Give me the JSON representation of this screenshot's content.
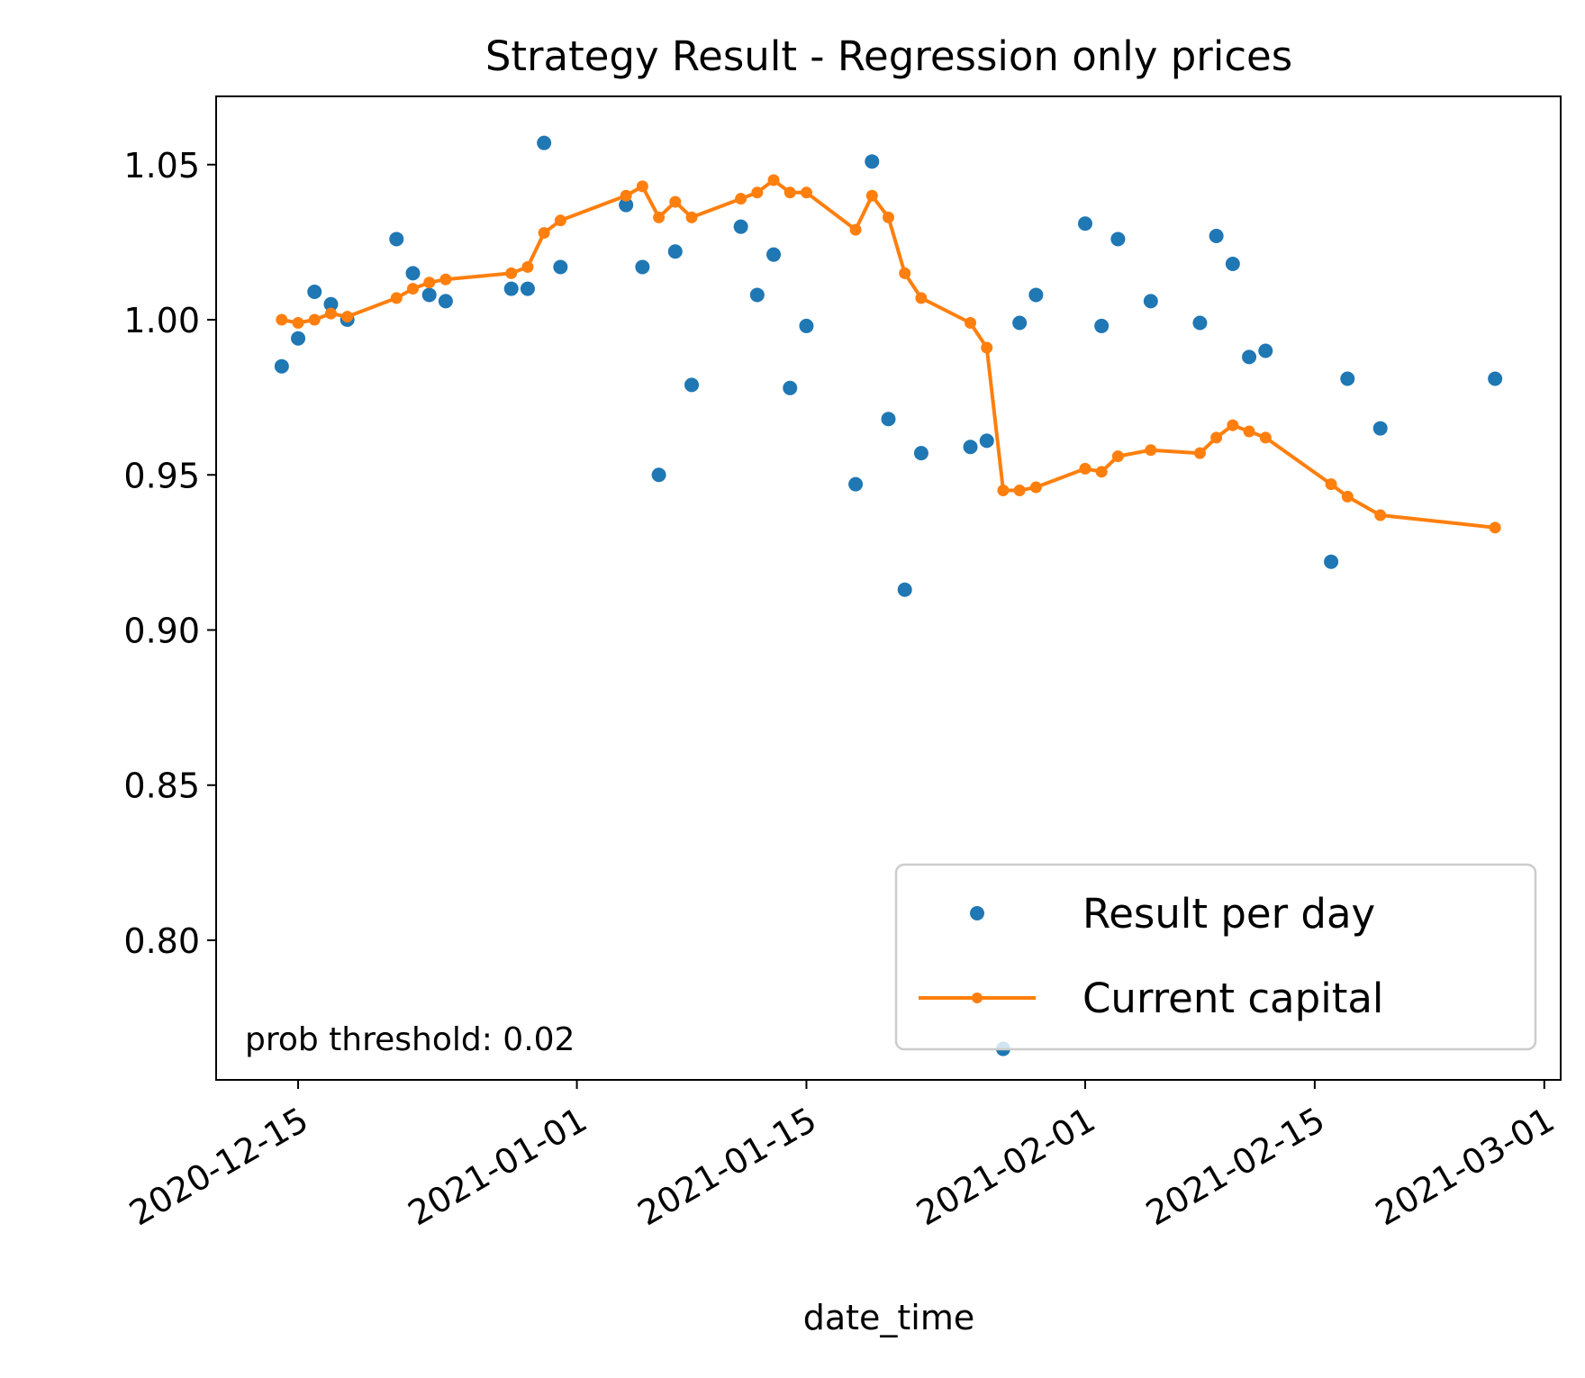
{
  "chart_data": {
    "type": "scatter",
    "title": "Strategy Result - Regression only prices",
    "xlabel": "date_time",
    "ylabel": "",
    "x_ticks": [
      "2020-12-15",
      "2021-01-01",
      "2021-01-15",
      "2021-02-01",
      "2021-02-15",
      "2021-03-01"
    ],
    "y_ticks": [
      "0.80",
      "0.85",
      "0.90",
      "0.95",
      "1.00",
      "1.05"
    ],
    "xlim": [
      "2020-12-10",
      "2021-03-02"
    ],
    "ylim": [
      0.755,
      1.072
    ],
    "legend_position": "lower-right",
    "annotation": "prob threshold: 0.02",
    "series": [
      {
        "name": "Result per day",
        "style": "points",
        "color": "#1f77b4",
        "x": [
          "2020-12-14",
          "2020-12-15",
          "2020-12-16",
          "2020-12-17",
          "2020-12-18",
          "2020-12-21",
          "2020-12-22",
          "2020-12-23",
          "2020-12-24",
          "2020-12-28",
          "2020-12-29",
          "2020-12-30",
          "2020-12-31",
          "2021-01-04",
          "2021-01-05",
          "2021-01-06",
          "2021-01-07",
          "2021-01-08",
          "2021-01-11",
          "2021-01-12",
          "2021-01-13",
          "2021-01-14",
          "2021-01-15",
          "2021-01-18",
          "2021-01-19",
          "2021-01-20",
          "2021-01-21",
          "2021-01-22",
          "2021-01-25",
          "2021-01-26",
          "2021-01-27",
          "2021-01-28",
          "2021-01-29",
          "2021-02-01",
          "2021-02-02",
          "2021-02-03",
          "2021-02-05",
          "2021-02-08",
          "2021-02-09",
          "2021-02-10",
          "2021-02-11",
          "2021-02-12",
          "2021-02-16",
          "2021-02-17",
          "2021-02-19",
          "2021-02-26"
        ],
        "y": [
          0.985,
          0.994,
          1.009,
          1.005,
          1.0,
          1.026,
          1.015,
          1.008,
          1.006,
          1.01,
          1.01,
          1.057,
          1.017,
          1.037,
          1.017,
          0.95,
          1.022,
          0.979,
          1.03,
          1.008,
          1.021,
          0.978,
          0.998,
          0.947,
          1.051,
          0.968,
          0.913,
          0.957,
          0.959,
          0.961,
          0.765,
          0.999,
          1.008,
          1.031,
          0.998,
          1.026,
          1.006,
          0.999,
          1.027,
          1.018,
          0.988,
          0.99,
          0.922,
          0.981,
          0.965,
          0.981
        ]
      },
      {
        "name": "Current capital",
        "style": "line-markers",
        "color": "#ff7f0e",
        "x": [
          "2020-12-14",
          "2020-12-15",
          "2020-12-16",
          "2020-12-17",
          "2020-12-18",
          "2020-12-21",
          "2020-12-22",
          "2020-12-23",
          "2020-12-24",
          "2020-12-28",
          "2020-12-29",
          "2020-12-30",
          "2020-12-31",
          "2021-01-04",
          "2021-01-05",
          "2021-01-06",
          "2021-01-07",
          "2021-01-08",
          "2021-01-11",
          "2021-01-12",
          "2021-01-13",
          "2021-01-14",
          "2021-01-15",
          "2021-01-18",
          "2021-01-19",
          "2021-01-20",
          "2021-01-21",
          "2021-01-22",
          "2021-01-25",
          "2021-01-26",
          "2021-01-27",
          "2021-01-28",
          "2021-01-29",
          "2021-02-01",
          "2021-02-02",
          "2021-02-03",
          "2021-02-05",
          "2021-02-08",
          "2021-02-09",
          "2021-02-10",
          "2021-02-11",
          "2021-02-12",
          "2021-02-16",
          "2021-02-17",
          "2021-02-19",
          "2021-02-26"
        ],
        "y": [
          1.0,
          0.999,
          1.0,
          1.002,
          1.001,
          1.007,
          1.01,
          1.012,
          1.013,
          1.015,
          1.017,
          1.028,
          1.032,
          1.04,
          1.043,
          1.033,
          1.038,
          1.033,
          1.039,
          1.041,
          1.045,
          1.041,
          1.041,
          1.029,
          1.04,
          1.033,
          1.015,
          1.007,
          0.999,
          0.991,
          0.945,
          0.945,
          0.946,
          0.952,
          0.951,
          0.956,
          0.958,
          0.957,
          0.962,
          0.966,
          0.964,
          0.962,
          0.947,
          0.943,
          0.937,
          0.933
        ]
      }
    ]
  }
}
